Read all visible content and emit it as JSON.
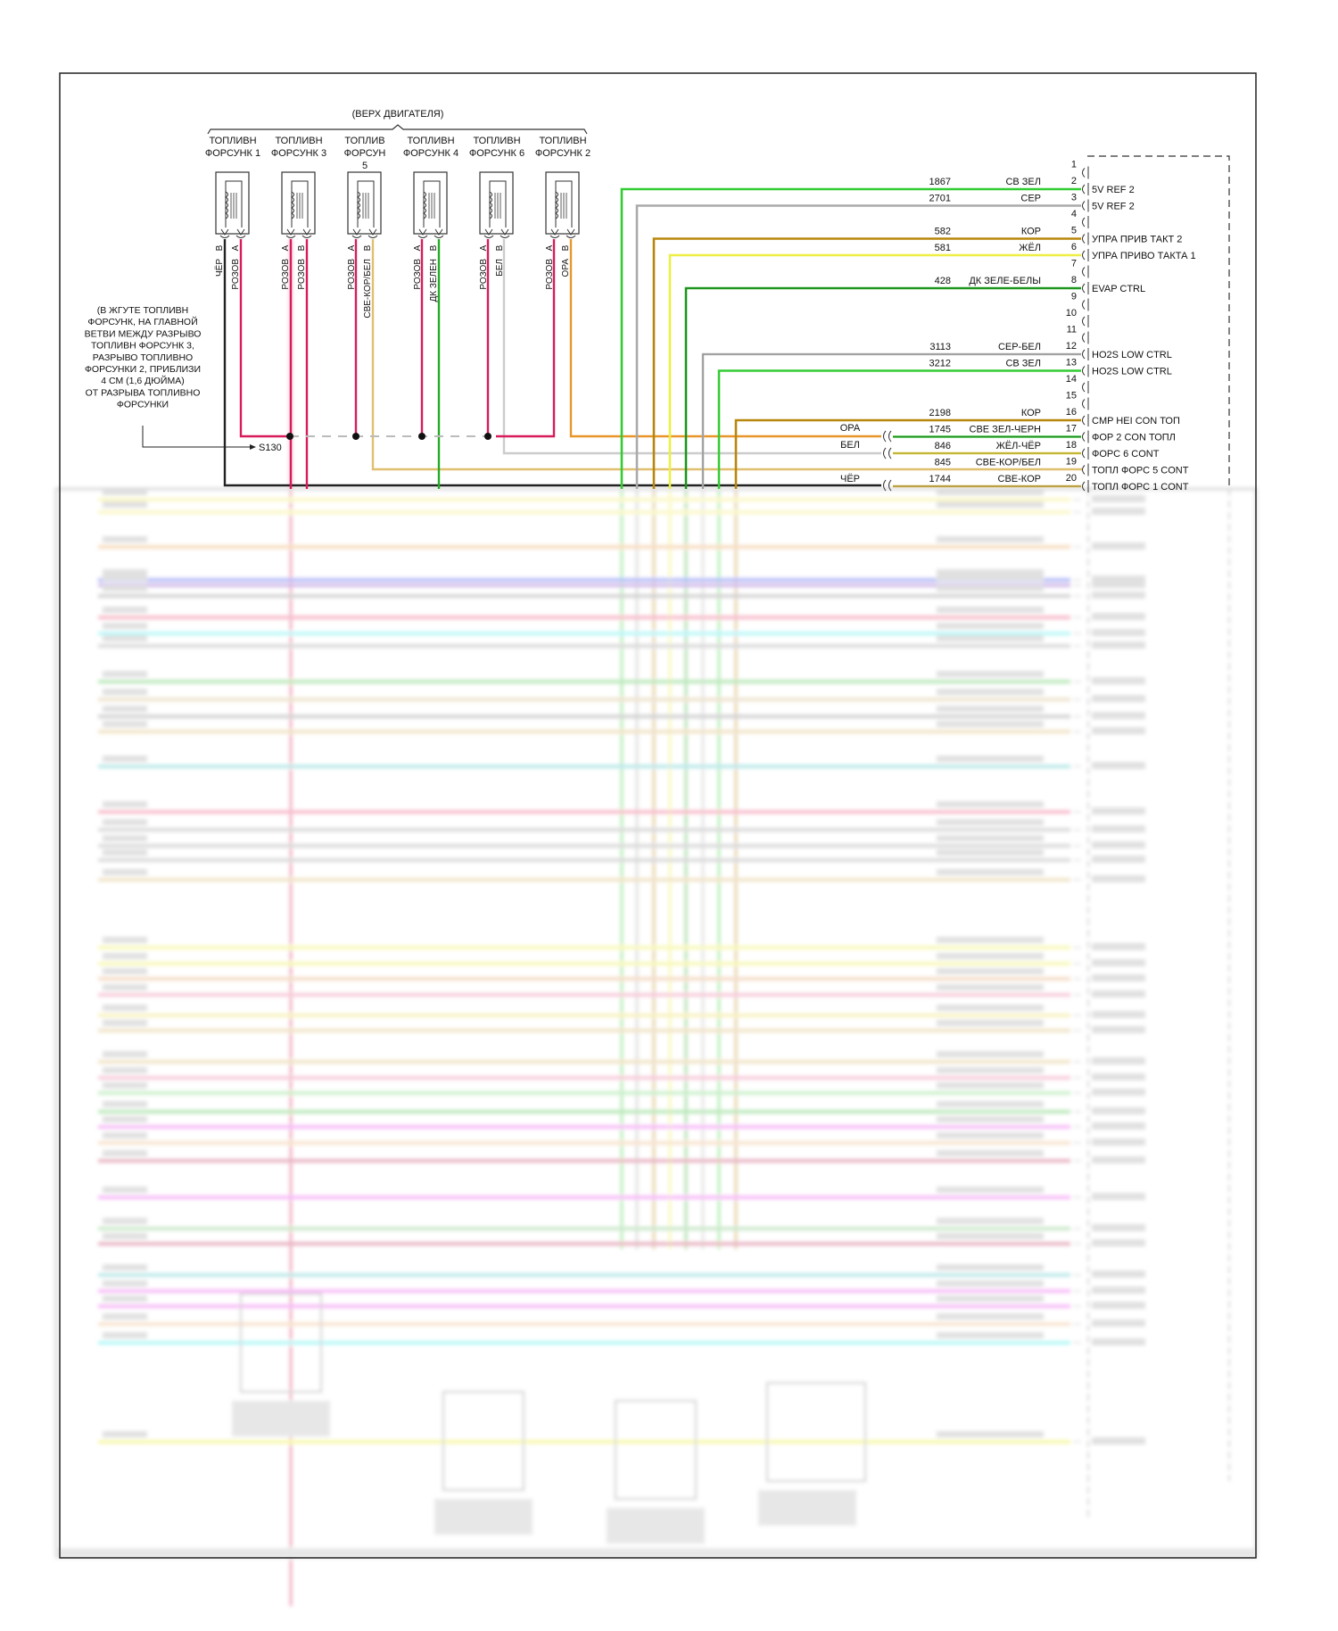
{
  "header": {
    "location": "(ВЕРХ ДВИГАТЕЛЯ)"
  },
  "injectors": [
    {
      "label": [
        "ТОПЛИВН",
        "ФОРСУНК 1"
      ],
      "pins": [
        {
          "pin": "B",
          "color_label": "ЧЁР",
          "color": "#222222"
        },
        {
          "pin": "A",
          "color_label": "РОЗОВ",
          "color": "#d81b5a"
        }
      ]
    },
    {
      "label": [
        "ТОПЛИВН",
        "ФОРСУНК 3"
      ],
      "pins": [
        {
          "pin": "A",
          "color_label": "РОЗОВ",
          "color": "#d81b5a"
        },
        {
          "pin": "B",
          "color_label": "РОЗОВ",
          "color": "#d81b5a"
        }
      ]
    },
    {
      "label": [
        "ТОПЛИВ",
        "ФОРСУН",
        "5"
      ],
      "pins": [
        {
          "pin": "A",
          "color_label": "РОЗОВ",
          "color": "#d81b5a"
        },
        {
          "pin": "B",
          "color_label": "СВЕ-КОР/БЕЛ",
          "color": "#e0c070"
        }
      ]
    },
    {
      "label": [
        "ТОПЛИВН",
        "ФОРСУНК 4"
      ],
      "pins": [
        {
          "pin": "A",
          "color_label": "РОЗОВ",
          "color": "#d81b5a"
        },
        {
          "pin": "B",
          "color_label": "ДК ЗЕЛЕН",
          "color": "#22aa22"
        }
      ]
    },
    {
      "label": [
        "ТОПЛИВН",
        "ФОРСУНК 6"
      ],
      "pins": [
        {
          "pin": "A",
          "color_label": "РОЗОВ",
          "color": "#d81b5a"
        },
        {
          "pin": "B",
          "color_label": "БЕЛ",
          "color": "#cccccc"
        }
      ]
    },
    {
      "label": [
        "ТОПЛИВН",
        "ФОРСУНК 2"
      ],
      "pins": [
        {
          "pin": "A",
          "color_label": "РОЗОВ",
          "color": "#d81b5a"
        },
        {
          "pin": "B",
          "color_label": "ОРА",
          "color": "#e8962a"
        }
      ]
    }
  ],
  "splice": {
    "note": [
      "(В ЖГУТЕ ТОПЛИВН",
      "ФОРСУНК, НА ГЛАВНОЙ",
      "ВЕТВИ МЕЖДУ РАЗРЫВО",
      "ТОПЛИВН ФОРСУНК 3,",
      "РАЗРЫВО ТОПЛИВНО",
      "ФОРСУНКИ 2, ПРИБЛИЗИ",
      "4 СМ (1,6 ДЮЙМА)",
      "ОТ РАЗРЫВА ТОПЛИВНО",
      "ФОРСУНКИ"
    ],
    "id": "S130"
  },
  "inline_labels": {
    "pin17": "ОРА",
    "pin18": "БЕЛ",
    "pin20": "ЧЁР"
  },
  "connector_pins": [
    {
      "num": "1",
      "circuit": "",
      "color_label": "",
      "function": "",
      "color": ""
    },
    {
      "num": "2",
      "circuit": "1867",
      "color_label": "СВ ЗЕЛ",
      "function": "5V REF 2",
      "color": "#33cc33"
    },
    {
      "num": "3",
      "circuit": "2701",
      "color_label": "СЕР",
      "function": "5V REF 2",
      "color": "#aaaaaa"
    },
    {
      "num": "4",
      "circuit": "",
      "color_label": "",
      "function": "",
      "color": ""
    },
    {
      "num": "5",
      "circuit": "582",
      "color_label": "КОР",
      "function": "УПРА ПРИВ ТАКТ 2",
      "color": "#b8860b"
    },
    {
      "num": "6",
      "circuit": "581",
      "color_label": "ЖЁЛ",
      "function": "УПРА ПРИВО ТАКТА 1",
      "color": "#eeee44"
    },
    {
      "num": "7",
      "circuit": "",
      "color_label": "",
      "function": "",
      "color": ""
    },
    {
      "num": "8",
      "circuit": "428",
      "color_label": "ДК ЗЕЛЕ-БЕЛЫ",
      "function": "EVAP CTRL",
      "color": "#22aa22"
    },
    {
      "num": "9",
      "circuit": "",
      "color_label": "",
      "function": "",
      "color": ""
    },
    {
      "num": "10",
      "circuit": "",
      "color_label": "",
      "function": "",
      "color": ""
    },
    {
      "num": "11",
      "circuit": "",
      "color_label": "",
      "function": "",
      "color": ""
    },
    {
      "num": "12",
      "circuit": "3113",
      "color_label": "СЕР-БЕЛ",
      "function": "HO2S LOW CTRL",
      "color": "#bbbbbb"
    },
    {
      "num": "13",
      "circuit": "3212",
      "color_label": "СВ ЗЕЛ",
      "function": "HO2S LOW CTRL",
      "color": "#33cc33"
    },
    {
      "num": "14",
      "circuit": "",
      "color_label": "",
      "function": "",
      "color": ""
    },
    {
      "num": "15",
      "circuit": "",
      "color_label": "",
      "function": "",
      "color": ""
    },
    {
      "num": "16",
      "circuit": "2198",
      "color_label": "КОР",
      "function": "CMP HEI CON ТОП",
      "color": "#b8860b"
    },
    {
      "num": "17",
      "circuit": "1745",
      "color_label": "СВЕ ЗЕЛ-ЧЕРН",
      "function": "ФОР 2 CON ТОПЛ",
      "color": "#33bb33"
    },
    {
      "num": "18",
      "circuit": "846",
      "color_label": "ЖЁЛ-ЧЁР",
      "function": "ФОРС 6 CONT",
      "color": "#e0d040"
    },
    {
      "num": "19",
      "circuit": "845",
      "color_label": "СВЕ-КОР/БЕЛ",
      "function": "ТОПЛ ФОРС 5 CONT",
      "color": "#e0c070"
    },
    {
      "num": "20",
      "circuit": "1744",
      "color_label": "СВЕ-КОР",
      "function": "ТОПЛ ФОРС 1 CONT",
      "color": "#d8b850"
    }
  ]
}
